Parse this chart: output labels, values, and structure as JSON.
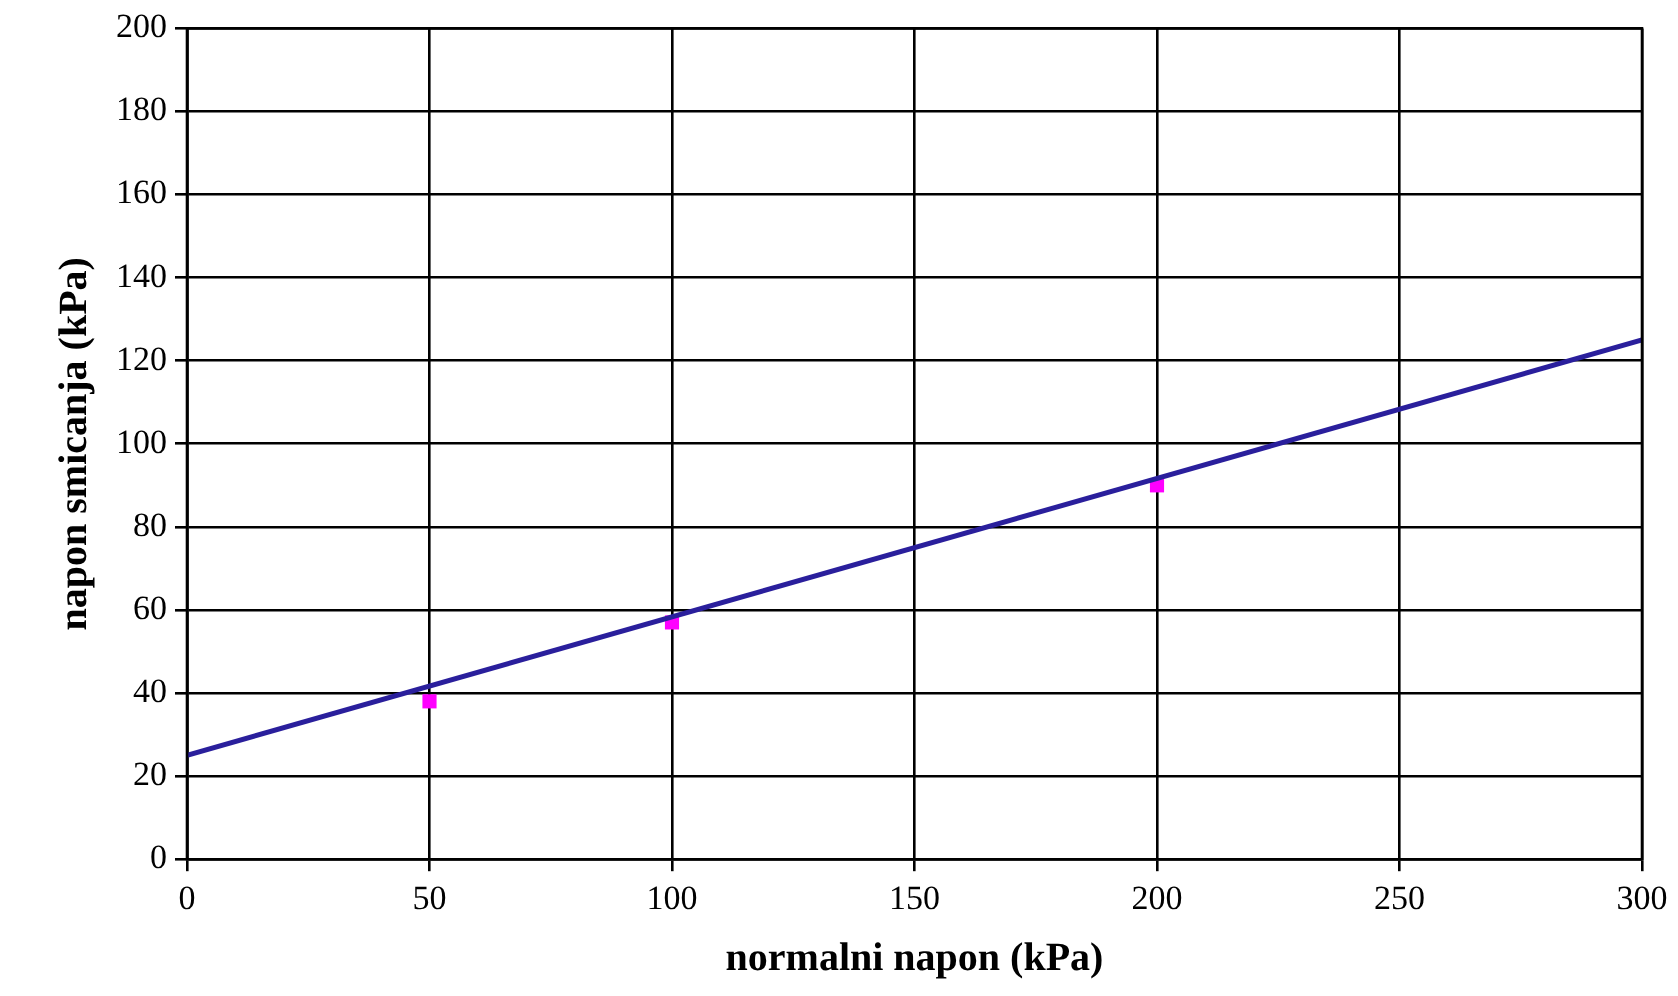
{
  "chart_data": {
    "type": "scatter",
    "xlabel": "normalni napon (kPa)",
    "ylabel": "napon smicanja (kPa)",
    "series": [
      {
        "type": "scatter",
        "color": "#ff00ff",
        "x": [
          50,
          100,
          200
        ],
        "values": [
          38,
          57,
          90
        ],
        "marker": "square"
      },
      {
        "type": "line",
        "color": "#2a1f9c",
        "x": [
          0,
          300
        ],
        "values": [
          25,
          125
        ],
        "marker": "none"
      }
    ],
    "xlim": [
      0,
      300
    ],
    "xticks": [
      0,
      50,
      100,
      150,
      200,
      250,
      300
    ],
    "ylim": [
      0,
      200
    ],
    "yticks": [
      0,
      20,
      40,
      60,
      80,
      100,
      120,
      140,
      160,
      180,
      200
    ],
    "grid": true,
    "legend": false
  }
}
